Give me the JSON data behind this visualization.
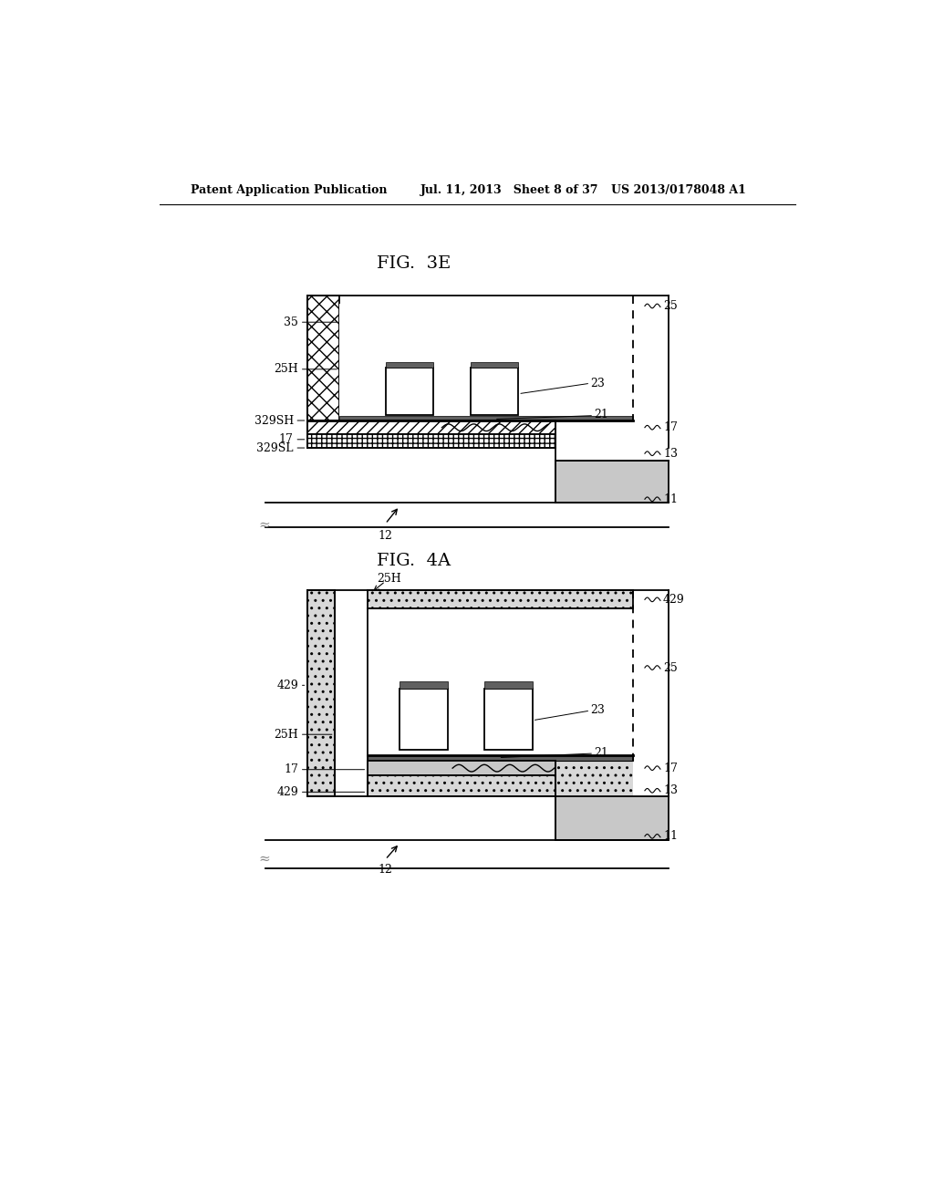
{
  "bg_color": "#ffffff",
  "header_left": "Patent Application Publication",
  "header_mid": "Jul. 11, 2013   Sheet 8 of 37",
  "header_right": "US 2013/0178048 A1",
  "fig3e_title": "FIG.  3E",
  "fig4a_title": "FIG.  4A",
  "lc": "#000000",
  "gray13": "#c8c8c8",
  "gray17_hatch": "#e0e0e0",
  "dark_layer": "#606060",
  "dot_fill": "#d8d8d8",
  "cross_fill": "#e8e8e8"
}
